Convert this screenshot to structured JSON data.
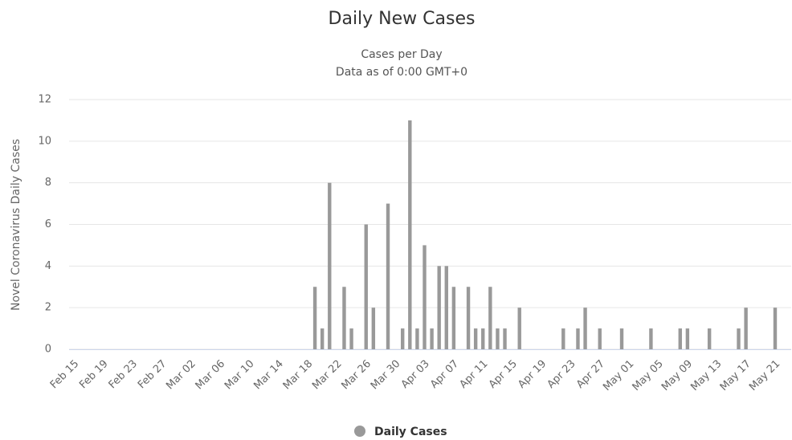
{
  "chart_data": {
    "type": "bar",
    "title": "Daily New Cases",
    "subtitle": [
      "Cases per Day",
      "Data as of 0:00 GMT+0"
    ],
    "ylabel": "Novel Coronavirus Daily Cases",
    "categories": [
      "Feb 15",
      null,
      null,
      null,
      "Feb 19",
      null,
      null,
      null,
      "Feb 23",
      null,
      null,
      null,
      "Feb 27",
      null,
      null,
      null,
      "Mar 02",
      null,
      null,
      null,
      "Mar 06",
      null,
      null,
      null,
      "Mar 10",
      null,
      null,
      null,
      "Mar 14",
      null,
      null,
      null,
      "Mar 18",
      null,
      null,
      null,
      "Mar 22",
      null,
      null,
      null,
      "Mar 26",
      null,
      null,
      null,
      "Mar 30",
      null,
      null,
      null,
      "Apr 03",
      null,
      null,
      null,
      "Apr 07",
      null,
      null,
      null,
      "Apr 11",
      null,
      null,
      null,
      "Apr 15",
      null,
      null,
      null,
      "Apr 19",
      null,
      null,
      null,
      "Apr 23",
      null,
      null,
      null,
      "Apr 27",
      null,
      null,
      null,
      "May 01",
      null,
      null,
      null,
      "May 05",
      null,
      null,
      null,
      "May 09",
      null,
      null,
      null,
      "May 13",
      null,
      null,
      null,
      "May 17",
      null,
      null,
      null,
      "May 21"
    ],
    "series": [
      {
        "name": "Daily Cases",
        "color": "#999999",
        "values": [
          0,
          0,
          0,
          0,
          0,
          0,
          0,
          0,
          0,
          0,
          0,
          0,
          0,
          0,
          0,
          0,
          0,
          0,
          0,
          0,
          0,
          0,
          0,
          0,
          0,
          0,
          0,
          0,
          0,
          0,
          0,
          0,
          0,
          3,
          1,
          8,
          0,
          3,
          1,
          0,
          6,
          2,
          0,
          7,
          0,
          1,
          11,
          1,
          5,
          1,
          4,
          4,
          3,
          0,
          3,
          1,
          1,
          3,
          1,
          1,
          0,
          2,
          0,
          0,
          0,
          0,
          0,
          1,
          0,
          1,
          2,
          0,
          1,
          0,
          0,
          1,
          0,
          0,
          0,
          1,
          0,
          0,
          0,
          1,
          1,
          0,
          0,
          1,
          0,
          0,
          0,
          1,
          2,
          0,
          0,
          0,
          2
        ]
      }
    ],
    "ylim": [
      0,
      12
    ],
    "yticks": [
      0,
      2,
      4,
      6,
      8,
      10,
      12
    ],
    "grid": true,
    "legend": "bottom"
  }
}
